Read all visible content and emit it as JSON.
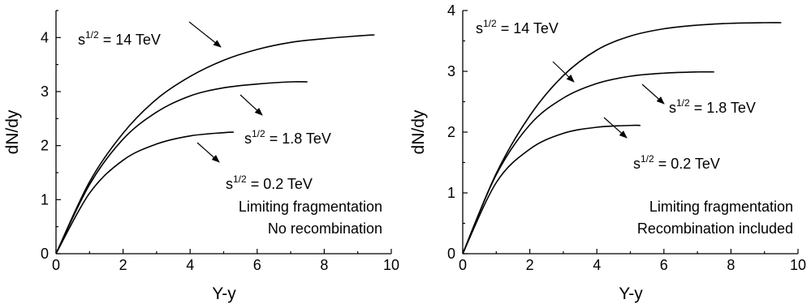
{
  "chart_data": [
    {
      "type": "line",
      "xlabel": "Y-y",
      "ylabel": "dN/dy",
      "xlim": [
        0,
        10
      ],
      "ylim": [
        0,
        4.5
      ],
      "xticks": [
        0,
        2,
        4,
        6,
        8,
        10
      ],
      "yticks": [
        0,
        1,
        2,
        3,
        4
      ],
      "grid": false,
      "annotation_lines": [
        "Limiting fragmentation",
        "No recombination"
      ],
      "series": [
        {
          "label_base": "s",
          "label_sup": "1/2",
          "label_rest": " = 14 TeV",
          "x": [
            0,
            1,
            2,
            3,
            4,
            5,
            6,
            7,
            8,
            9,
            9.5
          ],
          "y": [
            0,
            1.33,
            2.23,
            2.86,
            3.28,
            3.58,
            3.78,
            3.91,
            3.98,
            4.03,
            4.05
          ]
        },
        {
          "label_base": "s",
          "label_sup": "1/2",
          "label_rest": " = 1.8 TeV",
          "x": [
            0,
            1,
            2,
            3,
            4,
            5,
            6,
            7,
            7.5
          ],
          "y": [
            0,
            1.28,
            2.12,
            2.62,
            2.92,
            3.07,
            3.14,
            3.18,
            3.18
          ]
        },
        {
          "label_base": "s",
          "label_sup": "1/2",
          "label_rest": " = 0.2 TeV",
          "x": [
            0,
            1,
            2,
            3,
            4,
            5,
            5.3
          ],
          "y": [
            0,
            1.12,
            1.73,
            2.03,
            2.18,
            2.24,
            2.25
          ]
        }
      ]
    },
    {
      "type": "line",
      "xlabel": "Y-y",
      "ylabel": "dN/dy",
      "xlim": [
        0,
        10
      ],
      "ylim": [
        0,
        4
      ],
      "xticks": [
        0,
        2,
        4,
        6,
        8,
        10
      ],
      "yticks": [
        0,
        1,
        2,
        3,
        4
      ],
      "grid": false,
      "annotation_lines": [
        "Limiting fragmentation",
        "Recombination included"
      ],
      "series": [
        {
          "label_base": "s",
          "label_sup": "1/2",
          "label_rest": " = 14 TeV",
          "x": [
            0,
            1,
            2,
            3,
            4,
            5,
            6,
            7,
            8,
            9,
            9.5
          ],
          "y": [
            0,
            1.32,
            2.27,
            2.93,
            3.35,
            3.58,
            3.7,
            3.76,
            3.79,
            3.8,
            3.8
          ]
        },
        {
          "label_base": "s",
          "label_sup": "1/2",
          "label_rest": " = 1.8 TeV",
          "x": [
            0,
            1,
            2,
            3,
            4,
            5,
            6,
            7,
            7.5
          ],
          "y": [
            0,
            1.3,
            2.12,
            2.56,
            2.8,
            2.92,
            2.97,
            2.99,
            2.99
          ]
        },
        {
          "label_base": "s",
          "label_sup": "1/2",
          "label_rest": " = 0.2 TeV",
          "x": [
            0,
            1,
            2,
            3,
            4,
            5,
            5.3
          ],
          "y": [
            0,
            1.17,
            1.72,
            1.98,
            2.08,
            2.11,
            2.11
          ]
        }
      ]
    }
  ]
}
